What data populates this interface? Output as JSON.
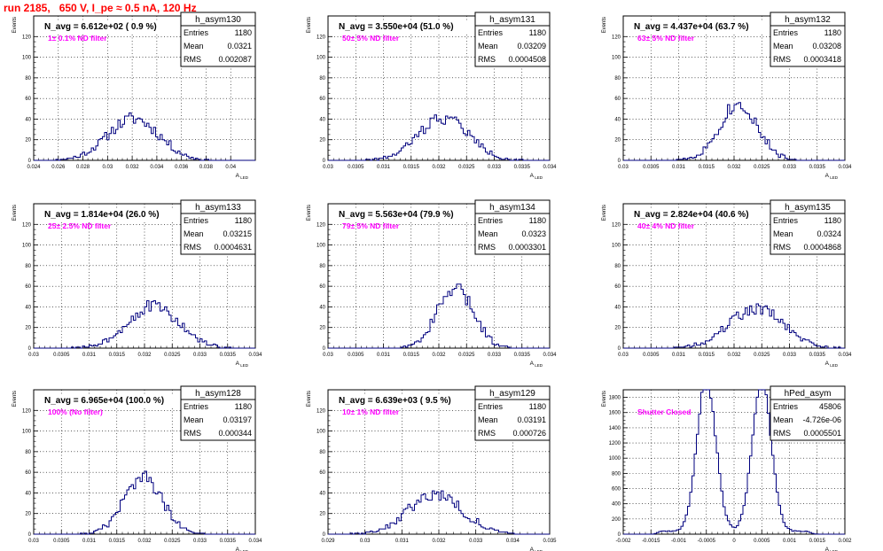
{
  "run_title": "run 2185,   650 V, I_pe ≈ 0.5 nA, 120 Hz",
  "chart_data": [
    {
      "type": "histogram",
      "title": "N_avg = 6.612e+02 ( 0.9 %)",
      "annotation": "1± 0.1% ND filter",
      "stats": {
        "name": "h_asym130",
        "entries_label": "Entries",
        "entries": "1180",
        "mean_label": "Mean",
        "mean": "0.0321",
        "rms_label": "RMS",
        "rms": "0.002087"
      },
      "xlabel": "A_{LED}",
      "ylabel": "Events",
      "xlim": [
        0.024,
        0.042
      ],
      "ylim": [
        0,
        140
      ],
      "xticks": [
        "0.024",
        "0.026",
        "0.028",
        "0.03",
        "0.032",
        "0.034",
        "0.036",
        "0.038",
        "0.04"
      ],
      "yticks": [
        "0",
        "20",
        "40",
        "60",
        "80",
        "100",
        "120"
      ],
      "shape": {
        "kind": "gauss",
        "mu": 0.0321,
        "sigma": 0.002087,
        "n": 1180,
        "nbins": 100,
        "seed": 11
      }
    },
    {
      "type": "histogram",
      "title": "N_avg = 3.550e+04 (51.0 %)",
      "annotation": "50± 5% ND filter",
      "stats": {
        "name": "h_asym131",
        "entries_label": "Entries",
        "entries": "1180",
        "mean_label": "Mean",
        "mean": "0.03209",
        "rms_label": "RMS",
        "rms": "0.0004508"
      },
      "xlabel": "A_{LED}",
      "ylabel": "Events",
      "xlim": [
        0.03,
        0.034
      ],
      "ylim": [
        0,
        140
      ],
      "xticks": [
        "0.03",
        "0.0305",
        "0.031",
        "0.0315",
        "0.032",
        "0.0325",
        "0.033",
        "0.0335",
        "0.034"
      ],
      "yticks": [
        "0",
        "20",
        "40",
        "60",
        "80",
        "100",
        "120"
      ],
      "shape": {
        "kind": "gauss",
        "mu": 0.03209,
        "sigma": 0.0004508,
        "n": 1180,
        "nbins": 100,
        "seed": 22
      }
    },
    {
      "type": "histogram",
      "title": "N_avg = 4.437e+04 (63.7 %)",
      "annotation": "63± 5% ND filter",
      "stats": {
        "name": "h_asym132",
        "entries_label": "Entries",
        "entries": "1180",
        "mean_label": "Mean",
        "mean": "0.03208",
        "rms_label": "RMS",
        "rms": "0.0003418"
      },
      "xlabel": "A_{LED}",
      "ylabel": "Events",
      "xlim": [
        0.03,
        0.034
      ],
      "ylim": [
        0,
        140
      ],
      "xticks": [
        "0.03",
        "0.0305",
        "0.031",
        "0.0315",
        "0.032",
        "0.0325",
        "0.033",
        "0.0335",
        "0.034"
      ],
      "yticks": [
        "0",
        "20",
        "40",
        "60",
        "80",
        "100",
        "120"
      ],
      "shape": {
        "kind": "gauss",
        "mu": 0.03208,
        "sigma": 0.0003418,
        "n": 1180,
        "nbins": 100,
        "seed": 33
      }
    },
    {
      "type": "histogram",
      "title": "N_avg = 1.814e+04 (26.0 %)",
      "annotation": "25± 2.5% ND filter",
      "stats": {
        "name": "h_asym133",
        "entries_label": "Entries",
        "entries": "1180",
        "mean_label": "Mean",
        "mean": "0.03215",
        "rms_label": "RMS",
        "rms": "0.0004631"
      },
      "xlabel": "A_{LED}",
      "ylabel": "Events",
      "xlim": [
        0.03,
        0.034
      ],
      "ylim": [
        0,
        140
      ],
      "xticks": [
        "0.03",
        "0.0305",
        "0.031",
        "0.0315",
        "0.032",
        "0.0325",
        "0.033",
        "0.0335",
        "0.034"
      ],
      "yticks": [
        "0",
        "20",
        "40",
        "60",
        "80",
        "100",
        "120"
      ],
      "shape": {
        "kind": "gauss",
        "mu": 0.03215,
        "sigma": 0.0004631,
        "n": 1180,
        "nbins": 100,
        "seed": 44
      }
    },
    {
      "type": "histogram",
      "title": "N_avg = 5.563e+04 (79.9 %)",
      "annotation": "79± 5% ND filter",
      "stats": {
        "name": "h_asym134",
        "entries_label": "Entries",
        "entries": "1180",
        "mean_label": "Mean",
        "mean": "0.0323",
        "rms_label": "RMS",
        "rms": "0.0003301"
      },
      "xlabel": "A_{LED}",
      "ylabel": "Events",
      "xlim": [
        0.03,
        0.034
      ],
      "ylim": [
        0,
        140
      ],
      "xticks": [
        "0.03",
        "0.0305",
        "0.031",
        "0.0315",
        "0.032",
        "0.0325",
        "0.033",
        "0.0335",
        "0.034"
      ],
      "yticks": [
        "0",
        "20",
        "40",
        "60",
        "80",
        "100",
        "120"
      ],
      "shape": {
        "kind": "gauss",
        "mu": 0.0323,
        "sigma": 0.0003301,
        "n": 1180,
        "nbins": 100,
        "seed": 55
      }
    },
    {
      "type": "histogram",
      "title": "N_avg = 2.824e+04 (40.6 %)",
      "annotation": "40± 4% ND filter",
      "stats": {
        "name": "h_asym135",
        "entries_label": "Entries",
        "entries": "1180",
        "mean_label": "Mean",
        "mean": "0.0324",
        "rms_label": "RMS",
        "rms": "0.0004868"
      },
      "xlabel": "A_{LED}",
      "ylabel": "Events",
      "xlim": [
        0.03,
        0.034
      ],
      "ylim": [
        0,
        140
      ],
      "xticks": [
        "0.03",
        "0.0305",
        "0.031",
        "0.0315",
        "0.032",
        "0.0325",
        "0.033",
        "0.0335",
        "0.034"
      ],
      "yticks": [
        "0",
        "20",
        "40",
        "60",
        "80",
        "100",
        "120"
      ],
      "shape": {
        "kind": "gauss",
        "mu": 0.0324,
        "sigma": 0.0004868,
        "n": 1180,
        "nbins": 100,
        "seed": 66
      }
    },
    {
      "type": "histogram",
      "title": "N_avg = 6.965e+04 (100.0 %)",
      "annotation": "100% (No filter)",
      "stats": {
        "name": "h_asym128",
        "entries_label": "Entries",
        "entries": "1180",
        "mean_label": "Mean",
        "mean": "0.03197",
        "rms_label": "RMS",
        "rms": "0.000344"
      },
      "xlabel": "A_{LED}",
      "ylabel": "Events",
      "xlim": [
        0.03,
        0.034
      ],
      "ylim": [
        0,
        140
      ],
      "xticks": [
        "0.03",
        "0.0305",
        "0.031",
        "0.0315",
        "0.032",
        "0.0325",
        "0.033",
        "0.0335",
        "0.034"
      ],
      "yticks": [
        "0",
        "20",
        "40",
        "60",
        "80",
        "100",
        "120"
      ],
      "shape": {
        "kind": "gauss",
        "mu": 0.03197,
        "sigma": 0.000344,
        "n": 1180,
        "nbins": 100,
        "seed": 77
      }
    },
    {
      "type": "histogram",
      "title": "N_avg = 6.639e+03 ( 9.5 %)",
      "annotation": "10± 1% ND filter",
      "stats": {
        "name": "h_asym129",
        "entries_label": "Entries",
        "entries": "1180",
        "mean_label": "Mean",
        "mean": "0.03191",
        "rms_label": "RMS",
        "rms": "0.000726"
      },
      "xlabel": "A_{LED}",
      "ylabel": "Events",
      "xlim": [
        0.029,
        0.035
      ],
      "ylim": [
        0,
        140
      ],
      "xticks": [
        "0.029",
        "0.03",
        "0.031",
        "0.032",
        "0.033",
        "0.034",
        "0.035"
      ],
      "yticks": [
        "0",
        "20",
        "40",
        "60",
        "80",
        "100",
        "120"
      ],
      "shape": {
        "kind": "gauss",
        "mu": 0.03191,
        "sigma": 0.000726,
        "n": 1180,
        "nbins": 100,
        "seed": 88
      }
    },
    {
      "type": "histogram",
      "title": "",
      "annotation": "Shutter Closed",
      "stats": {
        "name": "hPed_asym",
        "entries_label": "Entries",
        "entries": "45806",
        "mean_label": "Mean",
        "mean": "-4.726e-06",
        "rms_label": "RMS",
        "rms": "0.0005501"
      },
      "xlabel": "A_{LED}",
      "ylabel": "Events",
      "xlim": [
        -0.002,
        0.002
      ],
      "ylim": [
        0,
        1900
      ],
      "xticks": [
        "-0.002",
        "-0.0015",
        "-0.001",
        "-0.0005",
        "0",
        "0.0005",
        "0.001",
        "0.0015",
        "0.002"
      ],
      "yticks": [
        "0",
        "200",
        "400",
        "600",
        "800",
        "1000",
        "1200",
        "1400",
        "1600",
        "1800"
      ],
      "shape": {
        "kind": "bimodal",
        "mu1": -0.0005,
        "mu2": 0.0005,
        "sigma": 0.00017,
        "n": 45806,
        "nbins": 100,
        "seed": 99
      }
    }
  ],
  "colors": {
    "hist_line": "#00007f",
    "title_text": "#ff0000",
    "annotation_text": "#ff00ff",
    "grid": "#000000"
  }
}
